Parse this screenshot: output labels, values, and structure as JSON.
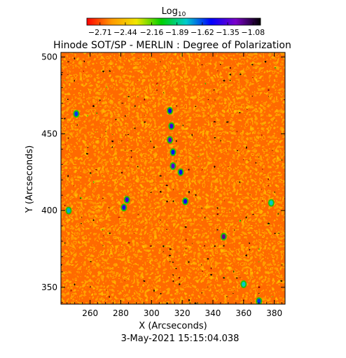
{
  "chart_data": {
    "type": "heatmap",
    "title": "Hinode SOT/SP - MERLIN : Degree of Polarization",
    "xlabel": "X (Arcseconds)",
    "ylabel": "Y (Arcseconds)",
    "date": "3-May-2021 15:15:04.038",
    "xlim": [
      241,
      387
    ],
    "ylim": [
      339,
      503
    ],
    "x_ticks": [
      260,
      280,
      300,
      320,
      340,
      360,
      380
    ],
    "y_ticks": [
      350,
      400,
      450,
      500
    ],
    "colorbar": {
      "label_main": "Log",
      "label_sub": "10",
      "colormap": "rainbow (red to black)",
      "stops": [
        "#ff0000",
        "#ff9900",
        "#f0e600",
        "#00d000",
        "#00cccc",
        "#0000ff",
        "#7a00c8",
        "#000000"
      ],
      "ticks": [
        "−2.71",
        "−2.44",
        "−2.16",
        "−1.89",
        "−1.62",
        "−1.35",
        "−1.08"
      ],
      "range": [
        -2.85,
        -1.0
      ]
    },
    "features": [
      {
        "x": 312,
        "y": 465,
        "value": -1.5
      },
      {
        "x": 313,
        "y": 455,
        "value": -1.4
      },
      {
        "x": 312,
        "y": 446,
        "value": -1.35
      },
      {
        "x": 314,
        "y": 438,
        "value": -1.55
      },
      {
        "x": 314,
        "y": 429,
        "value": -1.35
      },
      {
        "x": 319,
        "y": 425,
        "value": -1.55
      },
      {
        "x": 322,
        "y": 406,
        "value": -1.5
      },
      {
        "x": 284,
        "y": 407,
        "value": -1.4
      },
      {
        "x": 282,
        "y": 402,
        "value": -1.45
      },
      {
        "x": 347,
        "y": 383,
        "value": -1.2
      },
      {
        "x": 251,
        "y": 463,
        "value": -1.6
      },
      {
        "x": 246,
        "y": 400,
        "value": -1.75
      },
      {
        "x": 370,
        "y": 341,
        "value": -1.6
      },
      {
        "x": 378,
        "y": 405,
        "value": -1.8
      },
      {
        "x": 360,
        "y": 352,
        "value": -1.8
      }
    ]
  }
}
